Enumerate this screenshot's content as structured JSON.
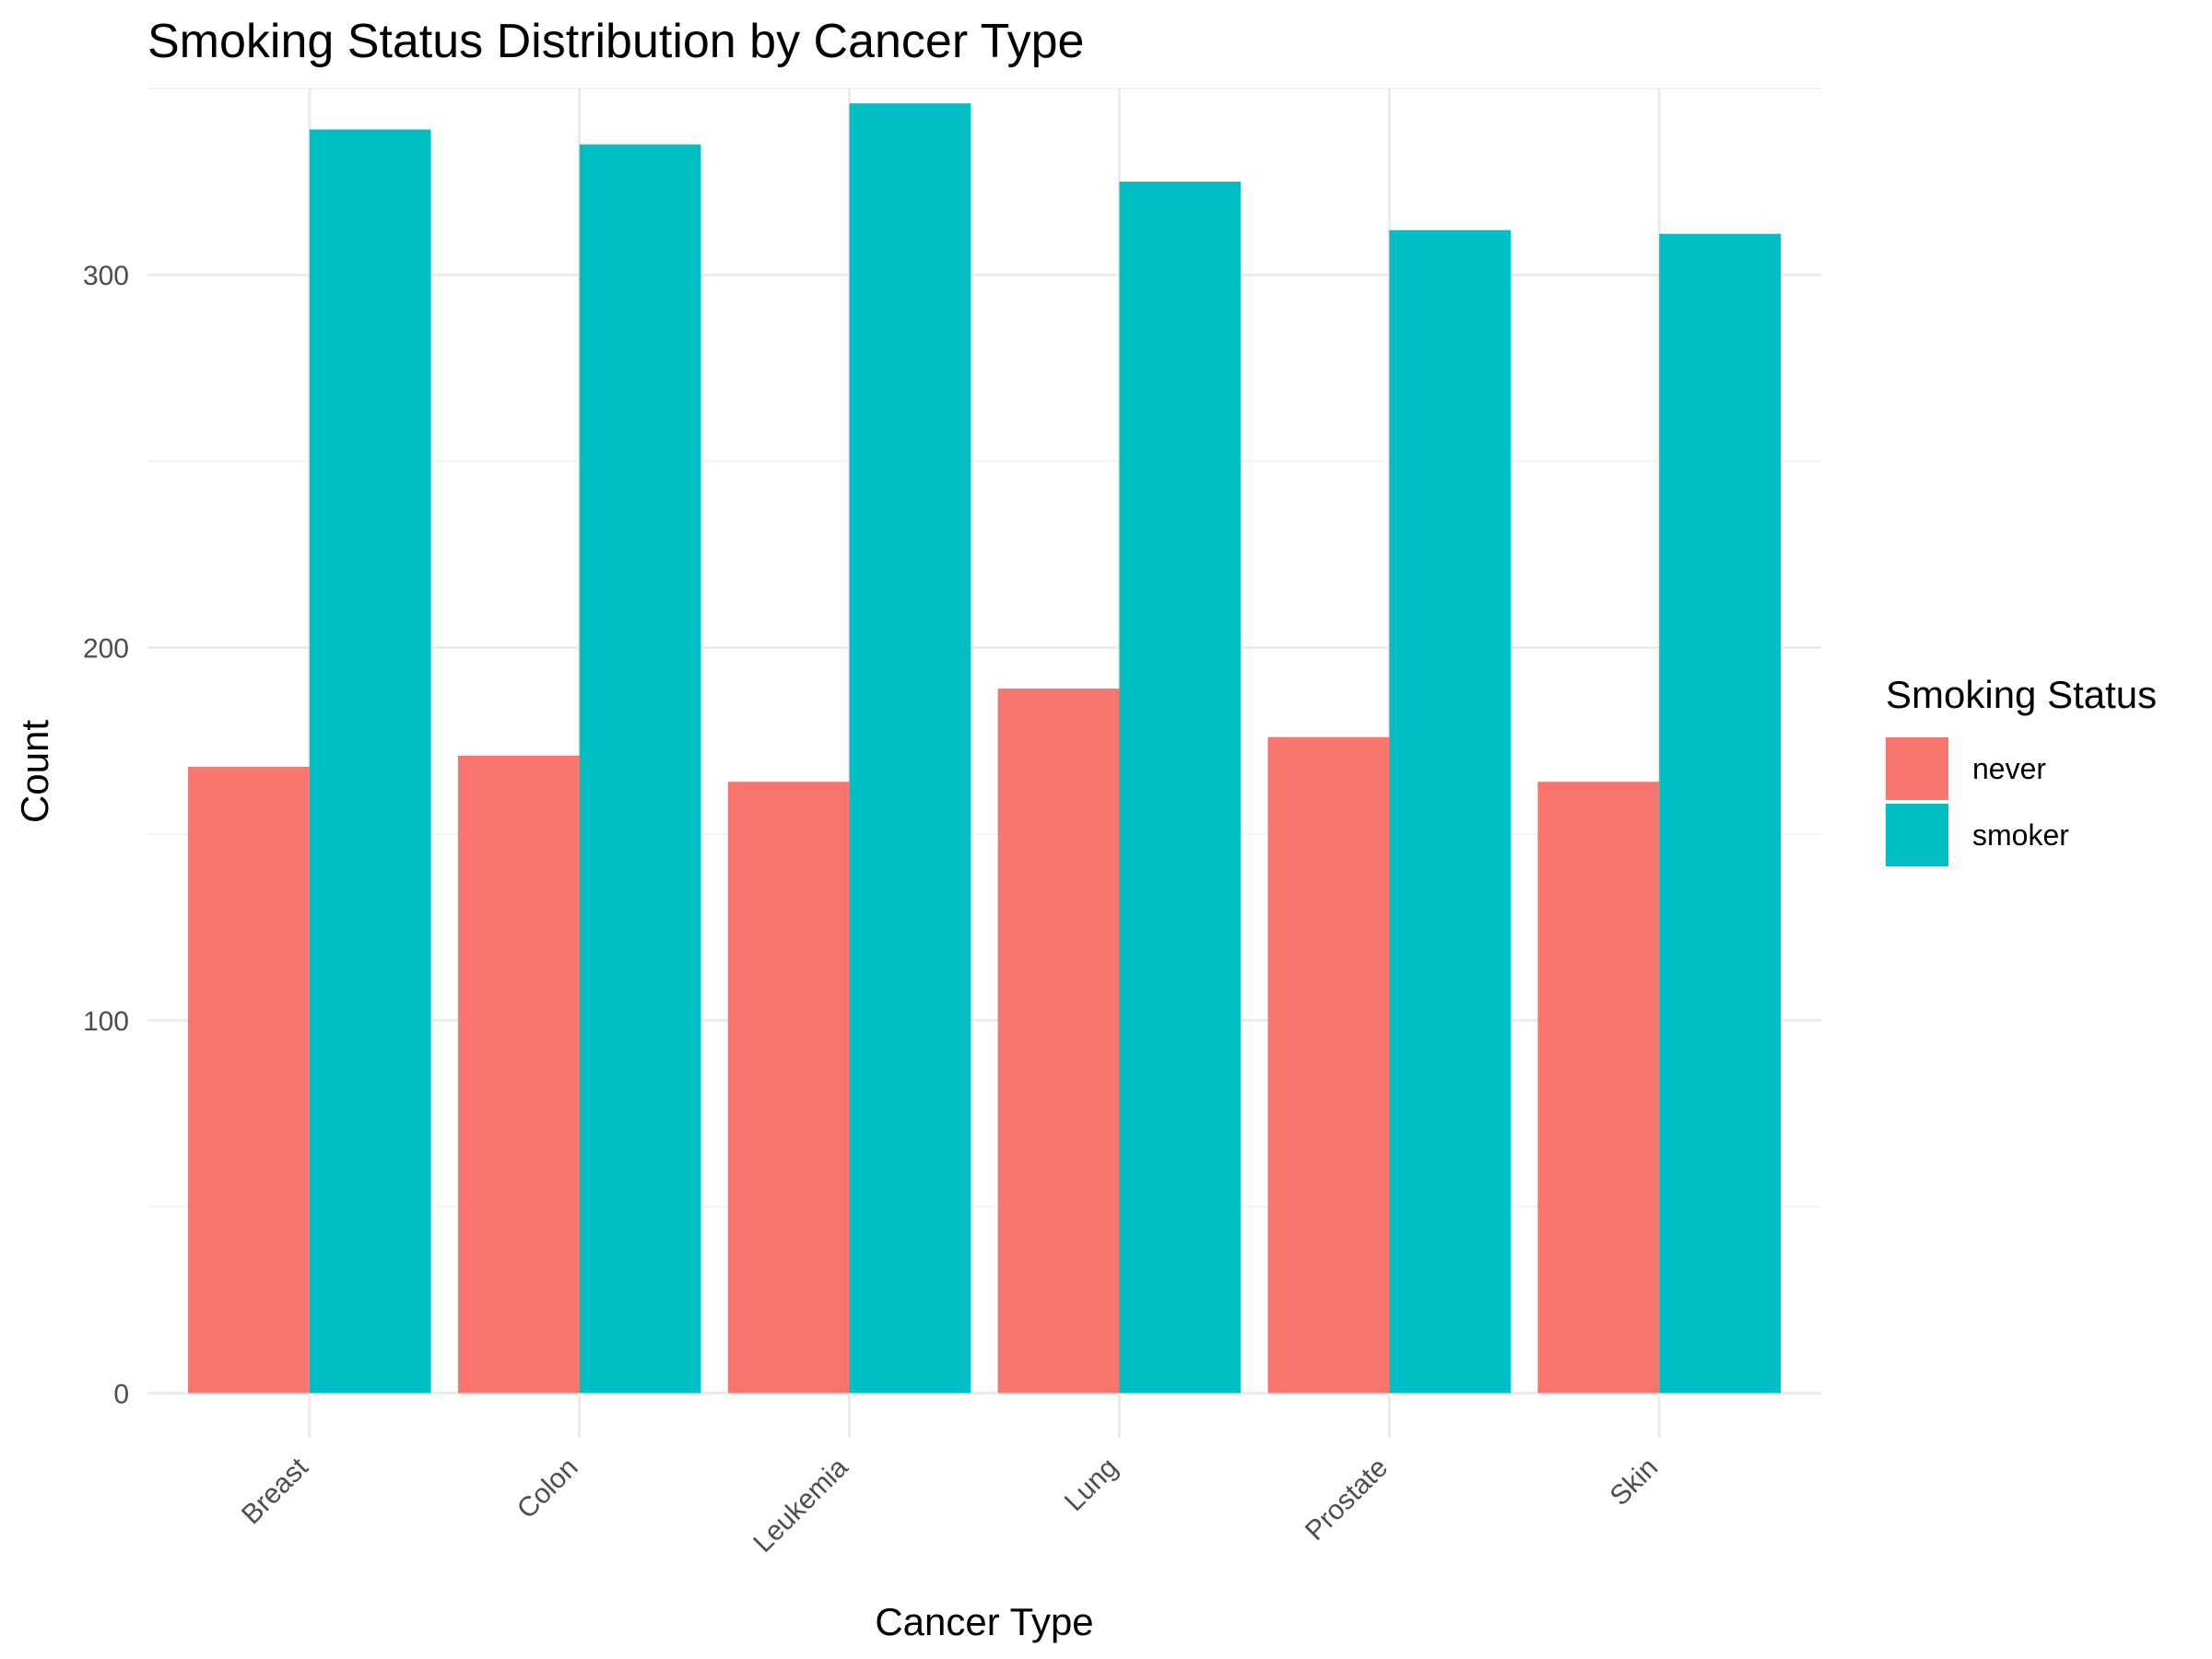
{
  "chart_data": {
    "type": "bar",
    "title": "Smoking Status Distribution by Cancer Type",
    "xlabel": "Cancer Type",
    "ylabel": "Count",
    "categories": [
      "Breast",
      "Colon",
      "Leukemia",
      "Lung",
      "Prostate",
      "Skin"
    ],
    "series": [
      {
        "name": "never",
        "color": "#F8766D",
        "values": [
          168,
          171,
          164,
          189,
          176,
          164
        ]
      },
      {
        "name": "smoker",
        "color": "#00BFC4",
        "values": [
          339,
          335,
          346,
          325,
          312,
          311
        ]
      }
    ],
    "ylim": [
      -12,
      350
    ],
    "yticks": [
      0,
      100,
      200,
      300
    ],
    "grid": true,
    "legend": {
      "title": "Smoking Status",
      "position": "right"
    }
  }
}
